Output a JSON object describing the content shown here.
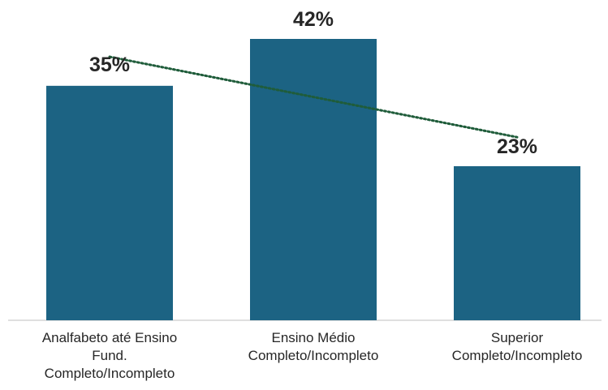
{
  "chart_data": {
    "type": "bar",
    "categories": [
      [
        "Analfabeto até Ensino",
        "Fund.",
        "Completo/Incompleto"
      ],
      [
        "Ensino Médio",
        "Completo/Incompleto"
      ],
      [
        "Superior",
        "Completo/Incompleto"
      ]
    ],
    "values": [
      35,
      42,
      23
    ],
    "data_labels": [
      "35%",
      "42%",
      "23%"
    ],
    "unit": "%",
    "ylim": [
      0,
      42
    ],
    "trendline": {
      "type": "linear",
      "style": "dotted"
    },
    "grid": false,
    "legend": "none",
    "colors": {
      "bar": "#1C6383",
      "trendline": "#1F5C3A",
      "text": "#262626",
      "axis": "#BFBFBF"
    }
  }
}
